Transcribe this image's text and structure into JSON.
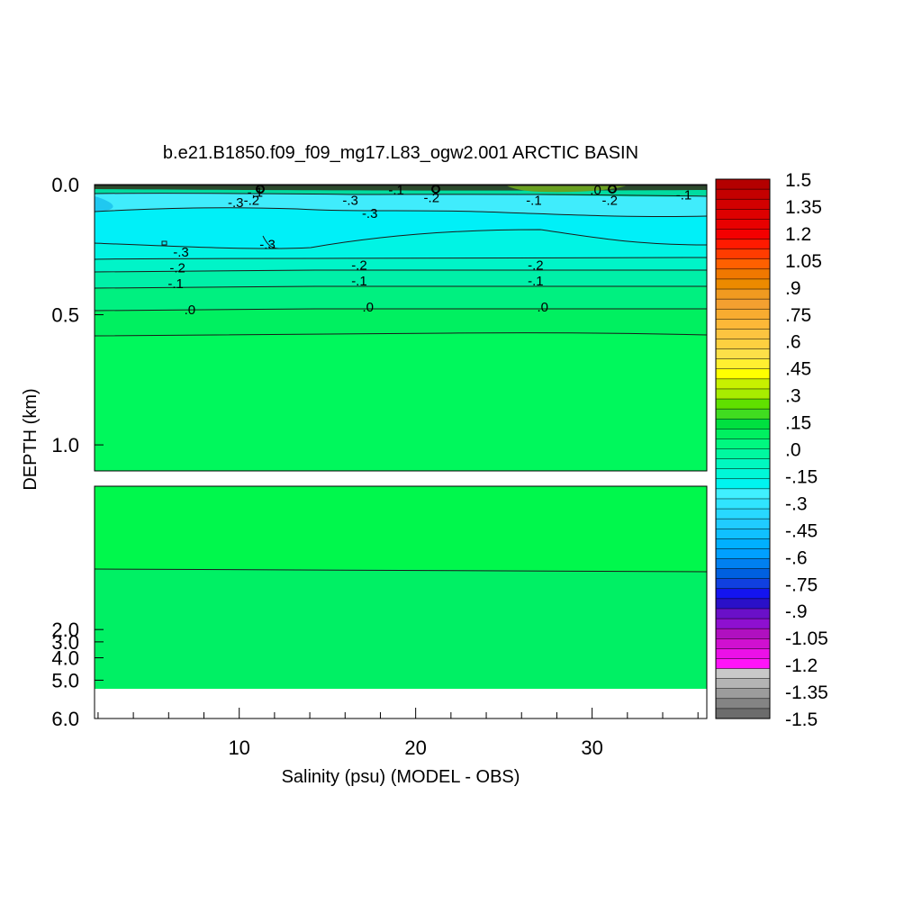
{
  "chart_data": {
    "type": "heatmap",
    "title": "b.e21.B1850.f09_f09_mg17.L83_ogw2.001 ARCTIC BASIN",
    "xlabel": "Salinity (psu) (MODEL - OBS)",
    "ylabel": "DEPTH (km)",
    "xlim": [
      1.8,
      36.5
    ],
    "x_ticks": [
      "10",
      "20",
      "30"
    ],
    "upper_panel": {
      "ylim": [
        0.0,
        1.1
      ],
      "y_ticks": [
        "0.0",
        "0.5",
        "1.0"
      ]
    },
    "lower_panel": {
      "ylim": [
        1.1,
        6.0
      ],
      "y_ticks": [
        "2.0",
        "3.0",
        "4.0",
        "5.0",
        "6.0"
      ]
    },
    "contour_labels": [
      {
        "text": "-.1",
        "x": 10.9,
        "depth": 0.03
      },
      {
        "text": "-.2",
        "x": 10.7,
        "depth": 0.06
      },
      {
        "text": "-.3",
        "x": 9.8,
        "depth": 0.07
      },
      {
        "text": "-.3",
        "x": 16.3,
        "depth": 0.06
      },
      {
        "text": "-.3",
        "x": 17.4,
        "depth": 0.11
      },
      {
        "text": "-.1",
        "x": 18.9,
        "depth": 0.02
      },
      {
        "text": "-.2",
        "x": 20.9,
        "depth": 0.05
      },
      {
        "text": "-.1",
        "x": 26.7,
        "depth": 0.06
      },
      {
        "text": "-.2",
        "x": 31.0,
        "depth": 0.06
      },
      {
        "text": "-.1",
        "x": 35.2,
        "depth": 0.04
      },
      {
        "text": ".0",
        "x": 30.2,
        "depth": 0.02
      },
      {
        "text": "-.3",
        "x": 11.6,
        "depth": 0.23
      },
      {
        "text": "-.3",
        "x": 6.7,
        "depth": 0.26
      },
      {
        "text": "-.2",
        "x": 6.5,
        "depth": 0.32
      },
      {
        "text": "-.1",
        "x": 6.4,
        "depth": 0.38
      },
      {
        "text": ".0",
        "x": 7.2,
        "depth": 0.48
      },
      {
        "text": "-.2",
        "x": 16.8,
        "depth": 0.31
      },
      {
        "text": "-.1",
        "x": 16.8,
        "depth": 0.37
      },
      {
        "text": ".0",
        "x": 17.3,
        "depth": 0.47
      },
      {
        "text": "-.2",
        "x": 26.8,
        "depth": 0.31
      },
      {
        "text": "-.1",
        "x": 26.8,
        "depth": 0.37
      },
      {
        "text": ".0",
        "x": 27.2,
        "depth": 0.47
      }
    ],
    "colorbar": {
      "labels": [
        "1.5",
        "1.35",
        "1.2",
        "1.05",
        ".9",
        ".75",
        ".6",
        ".45",
        ".3",
        ".15",
        ".0",
        "-.15",
        "-.3",
        "-.45",
        "-.6",
        "-.75",
        "-.9",
        "-1.05",
        "-1.2",
        "-1.35",
        "-1.5"
      ],
      "colors": [
        "#b40000",
        "#c40000",
        "#d20000",
        "#de0000",
        "#e80000",
        "#f40000",
        "#ff1a00",
        "#ff3c00",
        "#ff6000",
        "#f07800",
        "#ec8a00",
        "#f09a20",
        "#f4a030",
        "#f8ac30",
        "#fcb838",
        "#fcc440",
        "#fdd040",
        "#fde048",
        "#ffef30",
        "#ffff00",
        "#c8f000",
        "#a8ec00",
        "#60e000",
        "#40dc20",
        "#00e040",
        "#00f060",
        "#00f880",
        "#00f8a0",
        "#00f8c0",
        "#00f8d8",
        "#00f4f0",
        "#40f0ff",
        "#30e4ff",
        "#28d8ff",
        "#20ccff",
        "#10c0ff",
        "#00b0ff",
        "#00a0ff",
        "#0080f0",
        "#0060e0",
        "#1040e0",
        "#1414f0",
        "#2a10c8",
        "#6a10c8",
        "#8e10d0",
        "#b010c0",
        "#d010d0",
        "#ec10e8",
        "#ff14f8",
        "#c8c8c8",
        "#b4b4b4",
        "#9c9c9c",
        "#848484",
        "#6c6c6c"
      ]
    },
    "colors": {
      "surface_dark": "#2c4a2c",
      "upper_cyan": "#3cf0f8",
      "deep_green": "#00f85c"
    }
  }
}
